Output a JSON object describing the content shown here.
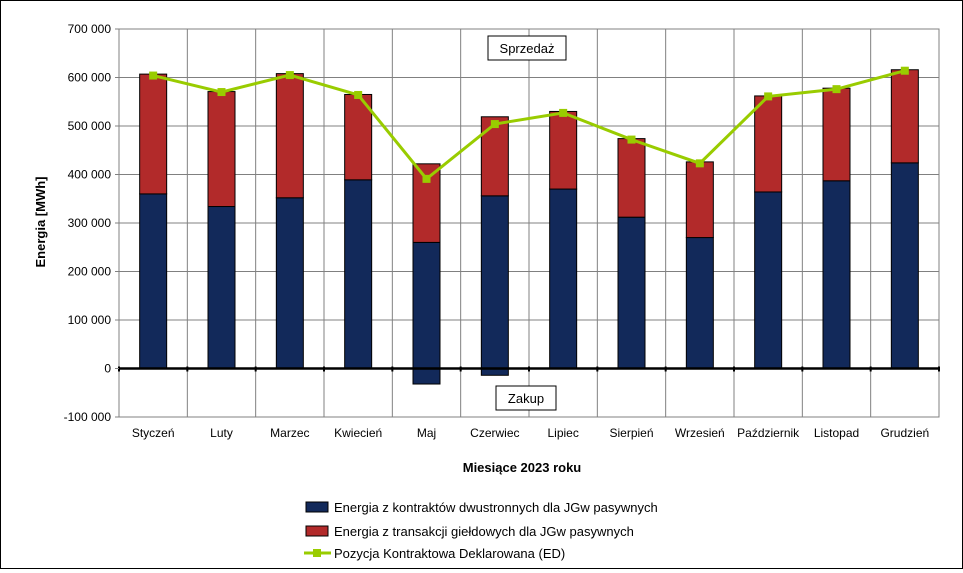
{
  "chart_data": {
    "type": "bar",
    "stacked": true,
    "categories": [
      "Styczeń",
      "Luty",
      "Marzec",
      "Kwiecień",
      "Maj",
      "Czerwiec",
      "Lipiec",
      "Sierpień",
      "Wrzesień",
      "Październik",
      "Listopad",
      "Grudzień"
    ],
    "series": [
      {
        "name": "Energia z kontraktów dwustronnych dla JGw pasywnych",
        "type": "bar",
        "color": "#12295a",
        "values": [
          360000,
          334000,
          352000,
          389000,
          260000,
          356000,
          370000,
          312000,
          270000,
          364000,
          387000,
          424000
        ]
      },
      {
        "name": "Energia z transakcji giełdowych dla JGw pasywnych",
        "type": "bar",
        "color": "#b22a2a",
        "values": [
          247000,
          237000,
          256000,
          176000,
          162000,
          163000,
          160000,
          162000,
          156000,
          198000,
          191000,
          192000
        ]
      },
      {
        "name": "Energia z kontraktów dwustronnych dla JGw pasywnych (ujemna)",
        "type": "bar-negative",
        "color": "#12295a",
        "values": [
          0,
          0,
          0,
          0,
          -32000,
          -14000,
          0,
          0,
          0,
          0,
          0,
          0
        ]
      },
      {
        "name": "Pozycja Kontraktowa Deklarowana (ED)",
        "type": "line",
        "color": "#99cc00",
        "values": [
          604000,
          570000,
          605000,
          564000,
          391000,
          504000,
          527000,
          472000,
          423000,
          561000,
          576000,
          614000
        ]
      }
    ],
    "xlabel": "Miesiące 2023  roku",
    "ylabel": "Energia [MWh]",
    "ylim": [
      -100000,
      700000
    ],
    "yticks": [
      -100000,
      0,
      100000,
      200000,
      300000,
      400000,
      500000,
      600000,
      700000
    ],
    "ytick_labels": [
      "-100 000",
      "0",
      "100 000",
      "200 000",
      "300 000",
      "400 000",
      "500 000",
      "600 000",
      "700 000"
    ],
    "grid": true,
    "legend_position": "bottom",
    "annotations": {
      "top": "Sprzedaż",
      "bottom": "Zakup"
    },
    "legend": [
      {
        "label": "Energia z kontraktów dwustronnych dla JGw pasywnych",
        "color": "#12295a",
        "kind": "box"
      },
      {
        "label": "Energia z transakcji giełdowych dla JGw pasywnych",
        "color": "#b22a2a",
        "kind": "box"
      },
      {
        "label": "Pozycja Kontraktowa Deklarowana (ED)",
        "color": "#99cc00",
        "kind": "line"
      }
    ]
  }
}
